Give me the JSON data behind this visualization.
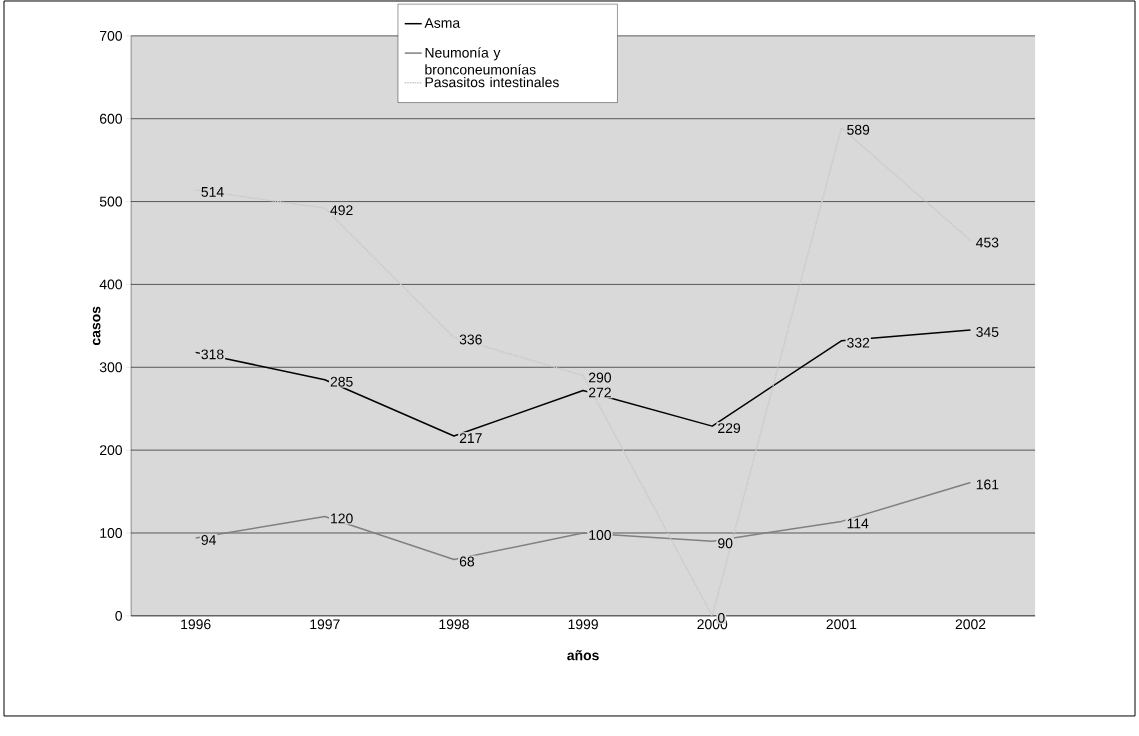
{
  "chart_data": {
    "type": "line",
    "xlabel": "años",
    "ylabel": "casos",
    "categories": [
      "1996",
      "1997",
      "1998",
      "1999",
      "2000",
      "2001",
      "2002"
    ],
    "series": [
      {
        "name": "Asma",
        "color": "#000000",
        "line_style": "solid",
        "values": [
          318,
          285,
          217,
          272,
          229,
          332,
          345
        ]
      },
      {
        "name": "Neumonía y bronconeumonías",
        "color": "#808080",
        "line_style": "solid",
        "values": [
          94,
          120,
          68,
          100,
          90,
          114,
          161
        ]
      },
      {
        "name": "Pasasitos intestinales",
        "color": "#c8c8c8",
        "line_style": "dotted",
        "values": [
          514,
          492,
          336,
          290,
          0,
          589,
          453
        ]
      }
    ],
    "ylim": [
      0,
      700
    ],
    "yticks": [
      0,
      100,
      200,
      300,
      400,
      500,
      600,
      700
    ],
    "grid": "y",
    "legend": "top",
    "data_labels": true,
    "marker": "none"
  }
}
